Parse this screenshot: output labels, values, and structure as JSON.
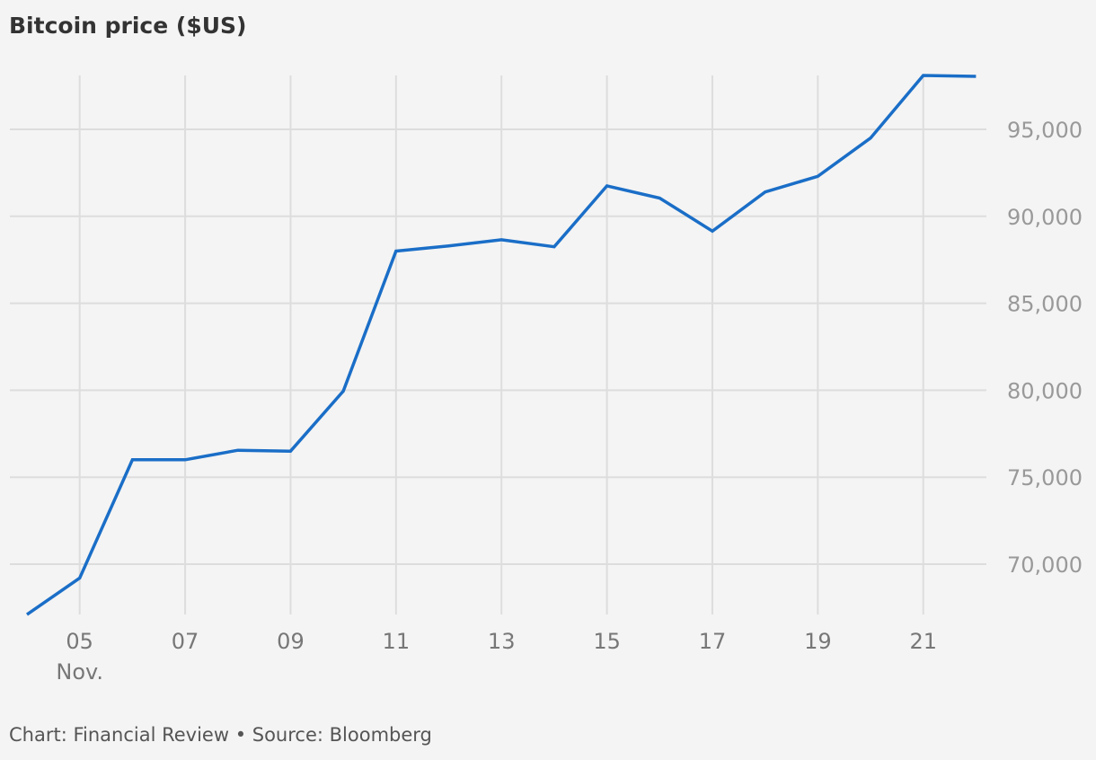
{
  "title": "Bitcoin price ($US)",
  "footer": "Chart: Financial Review • Source: Bloomberg",
  "colors": {
    "line": "#1a6ec7",
    "grid": "#dddddd",
    "background": "#f4f4f4",
    "title": "#333333",
    "ytick": "#999999",
    "xtick": "#777777"
  },
  "chart_data": {
    "type": "line",
    "title": "Bitcoin price ($US)",
    "xlabel": "",
    "ylabel": "",
    "x": [
      "Nov 4",
      "Nov 5",
      "Nov 6",
      "Nov 7",
      "Nov 8",
      "Nov 9",
      "Nov 10",
      "Nov 11",
      "Nov 12",
      "Nov 13",
      "Nov 14",
      "Nov 15",
      "Nov 16",
      "Nov 17",
      "Nov 18",
      "Nov 19",
      "Nov 20",
      "Nov 21",
      "Nov 22"
    ],
    "series": [
      {
        "name": "Bitcoin price ($US)",
        "values": [
          67100,
          69200,
          76000,
          76000,
          76550,
          76500,
          79950,
          88000,
          88300,
          88650,
          88250,
          91750,
          91050,
          89150,
          91400,
          92300,
          94500,
          98100,
          98050
        ]
      }
    ],
    "x_tick_labels": [
      "05",
      "07",
      "09",
      "11",
      "13",
      "15",
      "17",
      "19",
      "21"
    ],
    "x_tick_sublabel": "Nov.",
    "y_tick_labels": [
      "70,000",
      "75,000",
      "80,000",
      "85,000",
      "90,000",
      "95,000"
    ],
    "y_ticks": [
      70000,
      75000,
      80000,
      85000,
      90000,
      95000
    ],
    "ylim": [
      67000,
      98500
    ],
    "grid": true,
    "y_axis_position": "right",
    "legend": "none",
    "source": "Chart: Financial Review • Source: Bloomberg"
  }
}
